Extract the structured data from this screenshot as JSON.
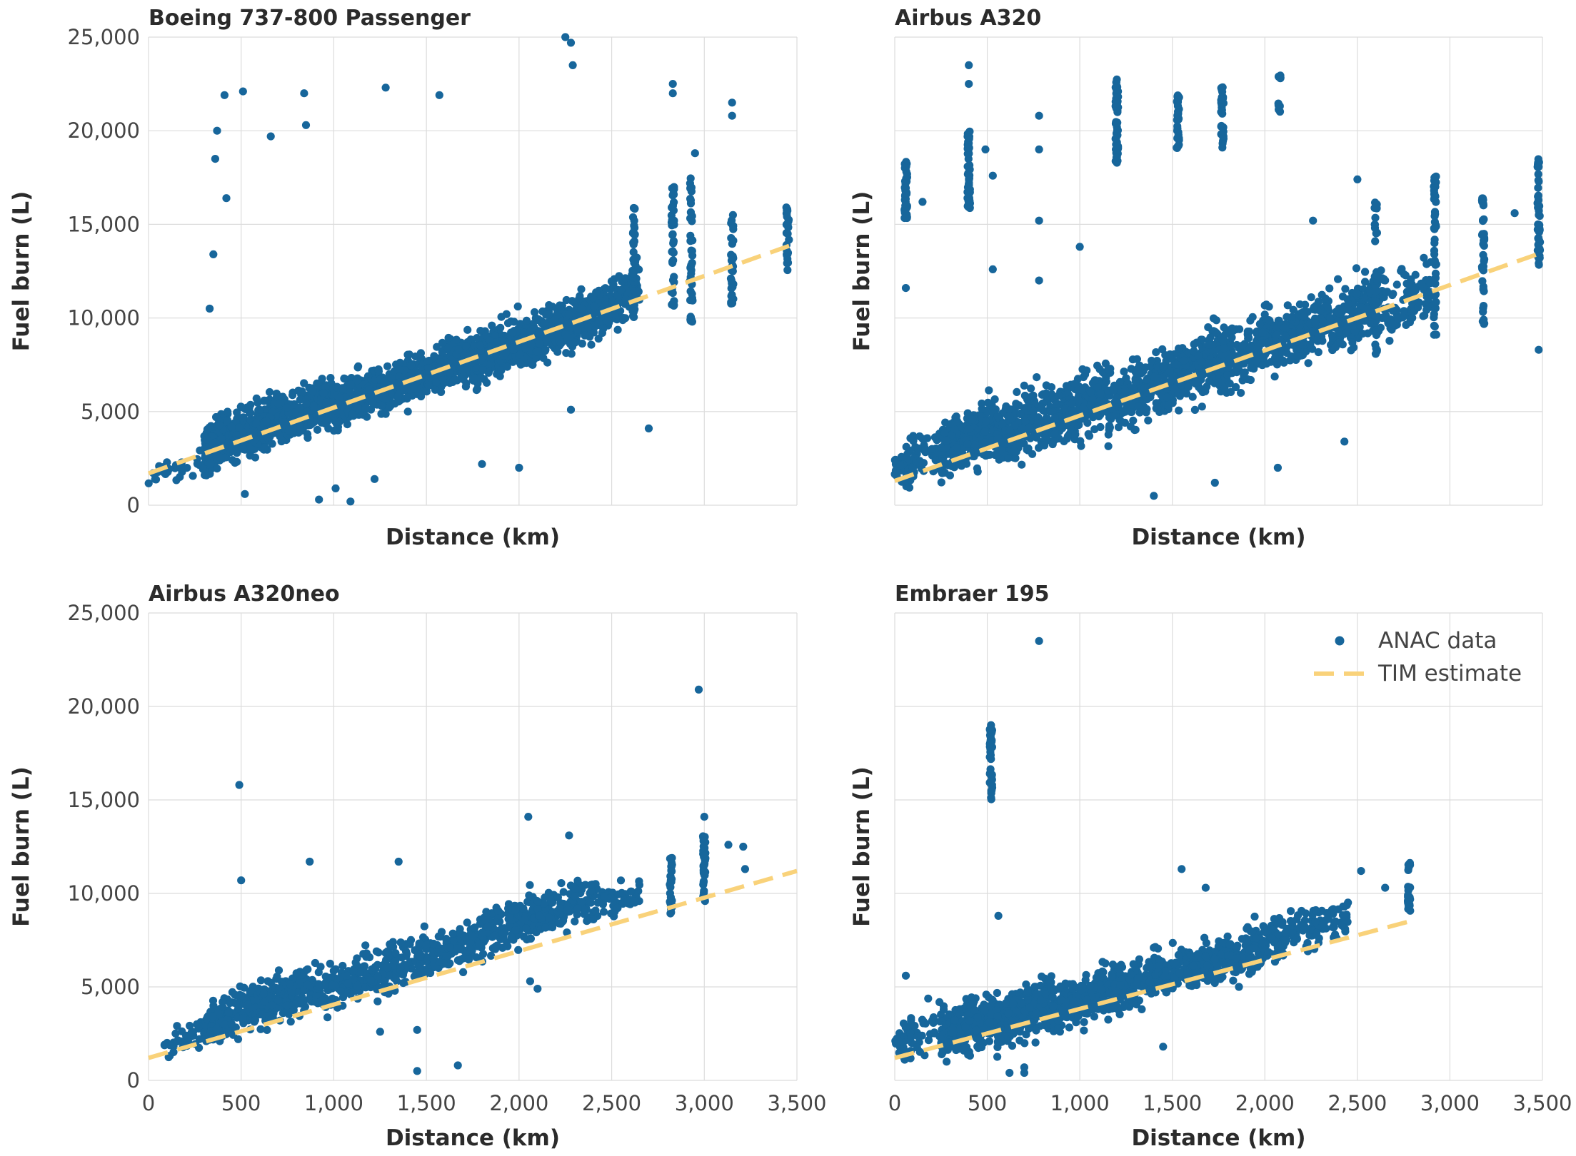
{
  "colors": {
    "scatter": "#17669b",
    "estimate": "#f9d27a",
    "grid": "#dcdcdc",
    "frame": "#cfcfcf"
  },
  "legend": {
    "scatter_label": "ANAC data",
    "line_label": "TIM estimate",
    "location": "top-right of Embraer 195 panel"
  },
  "chart_data": [
    {
      "type": "scatter",
      "title": "Boeing 737-800 Passenger",
      "xlabel": "Distance (km)",
      "ylabel": "Fuel burn (L)",
      "xlim": [
        0,
        3500
      ],
      "ylim": [
        0,
        25000
      ],
      "x_ticks": [
        0,
        500,
        1000,
        1500,
        2000,
        2500,
        3000,
        3500
      ],
      "y_ticks": [
        0,
        5000,
        10000,
        15000,
        20000,
        25000
      ],
      "x_tick_labels_shown": false,
      "y_tick_labels_shown": true,
      "tim_estimate": {
        "x": [
          0,
          3500
        ],
        "y": [
          1700,
          14000
        ]
      },
      "clusters": [
        {
          "x": [
            300,
            430
          ],
          "y": [
            1800,
            5200
          ],
          "n": 260
        },
        {
          "x": [
            430,
            700
          ],
          "y": [
            2400,
            6200
          ],
          "n": 240
        },
        {
          "x": [
            700,
            1000
          ],
          "y": [
            3200,
            7000
          ],
          "n": 240
        },
        {
          "x": [
            1000,
            1250
          ],
          "y": [
            4000,
            7800
          ],
          "n": 200
        },
        {
          "x": [
            1250,
            1500
          ],
          "y": [
            5000,
            8500
          ],
          "n": 200
        },
        {
          "x": [
            1500,
            1750
          ],
          "y": [
            5800,
            9500
          ],
          "n": 200
        },
        {
          "x": [
            1750,
            2000
          ],
          "y": [
            6400,
            10500
          ],
          "n": 200
        },
        {
          "x": [
            2000,
            2250
          ],
          "y": [
            7400,
            11200
          ],
          "n": 200
        },
        {
          "x": [
            2250,
            2500
          ],
          "y": [
            8200,
            12200
          ],
          "n": 180
        },
        {
          "x": [
            2500,
            2650
          ],
          "y": [
            9500,
            13200
          ],
          "n": 80
        },
        {
          "x": [
            0,
            300
          ],
          "y": [
            700,
            3200
          ],
          "n": 30
        }
      ],
      "columns": [
        {
          "x": 2620,
          "y": [
            9500,
            16000
          ],
          "n": 40
        },
        {
          "x": 2830,
          "y": [
            10500,
            17000
          ],
          "n": 40
        },
        {
          "x": 2930,
          "y": [
            9800,
            17500
          ],
          "n": 40
        },
        {
          "x": 3150,
          "y": [
            10700,
            15800
          ],
          "n": 35
        },
        {
          "x": 3450,
          "y": [
            12400,
            16000
          ],
          "n": 25
        }
      ],
      "outliers": [
        [
          370,
          20000
        ],
        [
          360,
          18500
        ],
        [
          410,
          21900
        ],
        [
          510,
          22100
        ],
        [
          420,
          16400
        ],
        [
          660,
          19700
        ],
        [
          840,
          22000
        ],
        [
          850,
          20300
        ],
        [
          1280,
          22300
        ],
        [
          1570,
          21900
        ],
        [
          2250,
          25000
        ],
        [
          2280,
          24700
        ],
        [
          2290,
          23500
        ],
        [
          2830,
          22500
        ],
        [
          2830,
          22000
        ],
        [
          3150,
          21500
        ],
        [
          3150,
          20800
        ],
        [
          2950,
          18800
        ],
        [
          350,
          13400
        ],
        [
          330,
          10500
        ],
        [
          1400,
          5000
        ],
        [
          2280,
          5100
        ],
        [
          2700,
          4100
        ],
        [
          1800,
          2200
        ],
        [
          2000,
          2000
        ],
        [
          920,
          300
        ],
        [
          1090,
          200
        ],
        [
          1220,
          1400
        ],
        [
          1010,
          900
        ],
        [
          520,
          600
        ]
      ]
    },
    {
      "type": "scatter",
      "title": "Airbus A320",
      "xlabel": "Distance (km)",
      "ylabel": "Fuel burn (L)",
      "xlim": [
        0,
        3500
      ],
      "ylim": [
        0,
        25000
      ],
      "x_ticks": [
        0,
        500,
        1000,
        1500,
        2000,
        2500,
        3000,
        3500
      ],
      "y_ticks": [
        0,
        5000,
        10000,
        15000,
        20000,
        25000
      ],
      "x_tick_labels_shown": false,
      "y_tick_labels_shown": false,
      "tim_estimate": {
        "x": [
          0,
          3500
        ],
        "y": [
          1300,
          13500
        ]
      },
      "clusters": [
        {
          "x": [
            0,
            250
          ],
          "y": [
            800,
            4500
          ],
          "n": 80
        },
        {
          "x": [
            250,
            550
          ],
          "y": [
            1400,
            6200
          ],
          "n": 260
        },
        {
          "x": [
            550,
            850
          ],
          "y": [
            2000,
            7000
          ],
          "n": 240
        },
        {
          "x": [
            850,
            1150
          ],
          "y": [
            3000,
            8000
          ],
          "n": 200
        },
        {
          "x": [
            1150,
            1450
          ],
          "y": [
            3800,
            8600
          ],
          "n": 200
        },
        {
          "x": [
            1450,
            1750
          ],
          "y": [
            5000,
            9800
          ],
          "n": 230
        },
        {
          "x": [
            1750,
            2050
          ],
          "y": [
            6000,
            10800
          ],
          "n": 200
        },
        {
          "x": [
            2050,
            2350
          ],
          "y": [
            7200,
            12000
          ],
          "n": 200
        },
        {
          "x": [
            2350,
            2650
          ],
          "y": [
            8000,
            13000
          ],
          "n": 180
        },
        {
          "x": [
            2650,
            2900
          ],
          "y": [
            9000,
            13700
          ],
          "n": 90
        }
      ],
      "columns": [
        {
          "x": 60,
          "y": [
            15300,
            18500
          ],
          "n": 40
        },
        {
          "x": 400,
          "y": [
            15500,
            20000
          ],
          "n": 60
        },
        {
          "x": 1200,
          "y": [
            18200,
            23000
          ],
          "n": 50
        },
        {
          "x": 1530,
          "y": [
            18800,
            22000
          ],
          "n": 30
        },
        {
          "x": 1770,
          "y": [
            19000,
            22500
          ],
          "n": 30
        },
        {
          "x": 2080,
          "y": [
            21000,
            23000
          ],
          "n": 12
        },
        {
          "x": 2600,
          "y": [
            8000,
            16400
          ],
          "n": 45
        },
        {
          "x": 2920,
          "y": [
            9000,
            17600
          ],
          "n": 45
        },
        {
          "x": 3180,
          "y": [
            9500,
            16500
          ],
          "n": 40
        },
        {
          "x": 3480,
          "y": [
            12800,
            18600
          ],
          "n": 45
        }
      ],
      "outliers": [
        [
          400,
          23500
        ],
        [
          400,
          22500
        ],
        [
          490,
          19000
        ],
        [
          780,
          20800
        ],
        [
          780,
          19000
        ],
        [
          530,
          17600
        ],
        [
          780,
          15200
        ],
        [
          150,
          16200
        ],
        [
          60,
          11600
        ],
        [
          530,
          12600
        ],
        [
          780,
          12000
        ],
        [
          1000,
          13800
        ],
        [
          2260,
          15200
        ],
        [
          2500,
          17400
        ],
        [
          3350,
          15600
        ],
        [
          3480,
          8300
        ],
        [
          2430,
          3400
        ],
        [
          1400,
          500
        ],
        [
          1730,
          1200
        ],
        [
          2070,
          2000
        ],
        [
          1480,
          5300
        ],
        [
          1870,
          6000
        ]
      ]
    },
    {
      "type": "scatter",
      "title": "Airbus A320neo",
      "xlabel": "Distance (km)",
      "ylabel": "Fuel burn (L)",
      "xlim": [
        0,
        3500
      ],
      "ylim": [
        0,
        25000
      ],
      "x_ticks": [
        0,
        500,
        1000,
        1500,
        2000,
        2500,
        3000,
        3500
      ],
      "y_ticks": [
        0,
        5000,
        10000,
        15000,
        20000,
        25000
      ],
      "x_tick_labels_shown": true,
      "y_tick_labels_shown": true,
      "tim_estimate": {
        "x": [
          0,
          3500
        ],
        "y": [
          1200,
          11200
        ]
      },
      "clusters": [
        {
          "x": [
            80,
            300
          ],
          "y": [
            1000,
            3500
          ],
          "n": 40
        },
        {
          "x": [
            300,
            600
          ],
          "y": [
            2000,
            5500
          ],
          "n": 150
        },
        {
          "x": [
            600,
            900
          ],
          "y": [
            2800,
            6500
          ],
          "n": 150
        },
        {
          "x": [
            900,
            1200
          ],
          "y": [
            3500,
            7200
          ],
          "n": 120
        },
        {
          "x": [
            1200,
            1500
          ],
          "y": [
            4500,
            8200
          ],
          "n": 130
        },
        {
          "x": [
            1500,
            1800
          ],
          "y": [
            5500,
            9000
          ],
          "n": 130
        },
        {
          "x": [
            1800,
            2100
          ],
          "y": [
            6500,
            10500
          ],
          "n": 140
        },
        {
          "x": [
            2100,
            2450
          ],
          "y": [
            7800,
            11200
          ],
          "n": 140
        },
        {
          "x": [
            2450,
            2650
          ],
          "y": [
            8500,
            11000
          ],
          "n": 40
        }
      ],
      "columns": [
        {
          "x": 2820,
          "y": [
            8800,
            12000
          ],
          "n": 30
        },
        {
          "x": 3000,
          "y": [
            9500,
            13300
          ],
          "n": 40
        }
      ],
      "outliers": [
        [
          2970,
          20900
        ],
        [
          490,
          15800
        ],
        [
          500,
          10700
        ],
        [
          870,
          11700
        ],
        [
          2050,
          14100
        ],
        [
          2270,
          13100
        ],
        [
          3000,
          14100
        ],
        [
          3130,
          12600
        ],
        [
          3210,
          12500
        ],
        [
          3220,
          11300
        ],
        [
          1350,
          11700
        ],
        [
          1450,
          500
        ],
        [
          1670,
          800
        ],
        [
          2060,
          5300
        ],
        [
          2100,
          4900
        ],
        [
          1450,
          2700
        ],
        [
          1250,
          2600
        ]
      ]
    },
    {
      "type": "scatter",
      "title": "Embraer 195",
      "xlabel": "Distance (km)",
      "ylabel": "Fuel burn (L)",
      "xlim": [
        0,
        3500
      ],
      "ylim": [
        0,
        25000
      ],
      "x_ticks": [
        0,
        500,
        1000,
        1500,
        2000,
        2500,
        3000,
        3500
      ],
      "y_ticks": [
        0,
        5000,
        10000,
        15000,
        20000,
        25000
      ],
      "x_tick_labels_shown": true,
      "y_tick_labels_shown": false,
      "tim_estimate": {
        "x": [
          0,
          2780
        ],
        "y": [
          1200,
          8500
        ]
      },
      "clusters": [
        {
          "x": [
            0,
            250
          ],
          "y": [
            800,
            4500
          ],
          "n": 60
        },
        {
          "x": [
            250,
            550
          ],
          "y": [
            1200,
            5000
          ],
          "n": 260
        },
        {
          "x": [
            550,
            850
          ],
          "y": [
            1800,
            5800
          ],
          "n": 240
        },
        {
          "x": [
            850,
            1150
          ],
          "y": [
            2600,
            6200
          ],
          "n": 220
        },
        {
          "x": [
            1150,
            1450
          ],
          "y": [
            3500,
            7200
          ],
          "n": 200
        },
        {
          "x": [
            1450,
            1800
          ],
          "y": [
            4500,
            8000
          ],
          "n": 200
        },
        {
          "x": [
            1800,
            2100
          ],
          "y": [
            5500,
            9000
          ],
          "n": 160
        },
        {
          "x": [
            2100,
            2450
          ],
          "y": [
            6800,
            10200
          ],
          "n": 90
        }
      ],
      "columns": [
        {
          "x": 520,
          "y": [
            15000,
            19000
          ],
          "n": 40
        },
        {
          "x": 2780,
          "y": [
            9000,
            11700
          ],
          "n": 25
        }
      ],
      "outliers": [
        [
          780,
          23500
        ],
        [
          520,
          19000
        ],
        [
          1550,
          11300
        ],
        [
          1680,
          10300
        ],
        [
          2520,
          11200
        ],
        [
          2650,
          10300
        ],
        [
          620,
          400
        ],
        [
          700,
          400
        ],
        [
          700,
          700
        ],
        [
          1450,
          1800
        ],
        [
          1860,
          5000
        ],
        [
          280,
          1000
        ],
        [
          60,
          5600
        ],
        [
          560,
          8800
        ]
      ]
    }
  ]
}
